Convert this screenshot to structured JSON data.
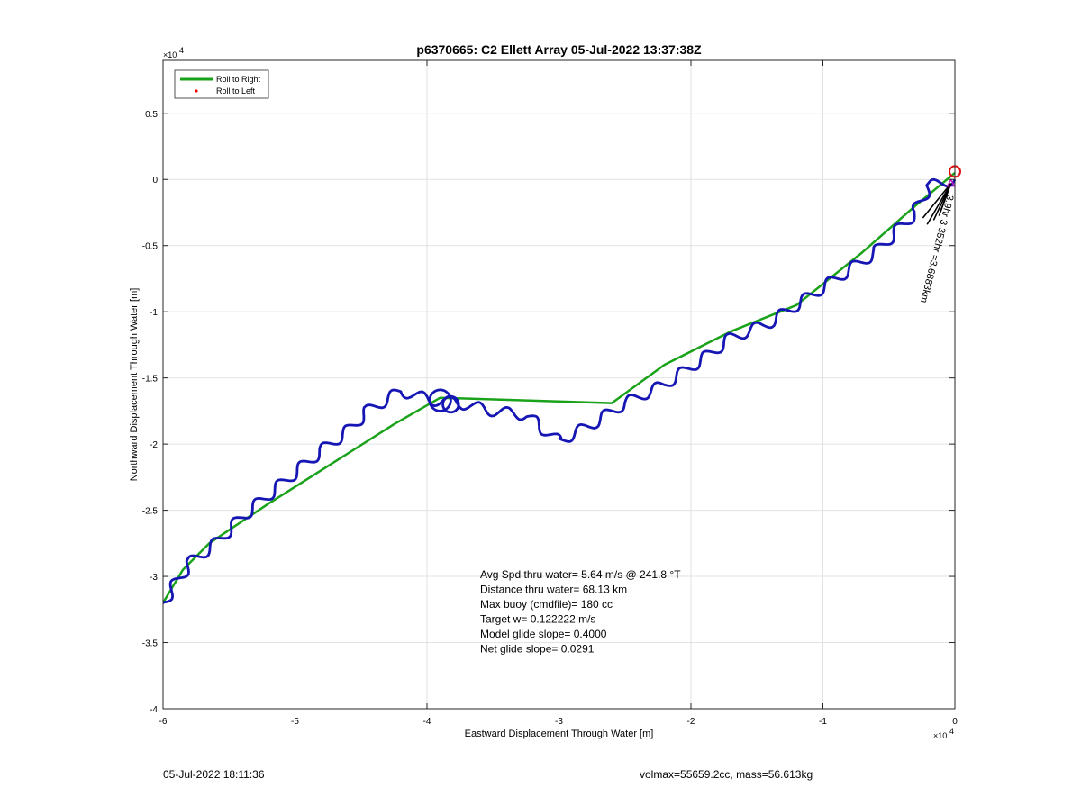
{
  "chart_data": {
    "type": "line",
    "title": "p6370665: C2 Ellett Array 05-Jul-2022 13:37:38Z",
    "xlabel": "Eastward Displacement Through Water [m]",
    "ylabel": "Northward Displacement Through Water [m]",
    "x_multiplier": "×10",
    "y_multiplier": "×10",
    "multiplier_exponent": "4",
    "xlim": [
      -60000,
      0
    ],
    "ylim": [
      -40000,
      9000
    ],
    "xticks": [
      -60000,
      -50000,
      -40000,
      -30000,
      -20000,
      -10000,
      0
    ],
    "xtick_labels": [
      "-6",
      "-5",
      "-4",
      "-3",
      "-2",
      "-1",
      "0"
    ],
    "yticks": [
      -40000,
      -35000,
      -30000,
      -25000,
      -20000,
      -15000,
      -10000,
      -5000,
      0,
      5000
    ],
    "ytick_labels": [
      "-4",
      "-3.5",
      "-3",
      "-2.5",
      "-2",
      "-1.5",
      "-1",
      "-0.5",
      "0",
      "0.5"
    ],
    "grid": true,
    "legend_position": "top-left",
    "legend": [
      {
        "name": "Roll to Right",
        "style": "line",
        "color": "#1aa21a"
      },
      {
        "name": "Roll to Left",
        "style": "dot",
        "color": "#ff0000"
      }
    ],
    "series": [
      {
        "name": "Roll to Right",
        "color": "#1aa21a",
        "x": [
          0,
          -3000,
          -7000,
          -12000,
          -17000,
          -22000,
          -26000,
          -39000,
          -42500,
          -52000,
          -56500,
          -58500,
          -60000
        ],
        "y": [
          500,
          -2000,
          -5500,
          -9500,
          -11500,
          -14000,
          -16900,
          -16500,
          -18500,
          -24500,
          -27500,
          -29500,
          -32000
        ]
      },
      {
        "name": "track",
        "color": "#1616b4",
        "base_x": [
          0,
          -2000,
          -3000,
          -6000,
          -9000,
          -12000,
          -14000,
          -17000,
          -19000,
          -22000,
          -25000,
          -27500,
          -30000,
          -32500,
          -35000,
          -38000,
          -39500,
          -42000,
          -44500,
          -46000,
          -48000,
          -51000,
          -54000,
          -56000,
          -58000,
          -59000,
          -60000
        ],
        "base_y": [
          0,
          -500,
          -2500,
          -5500,
          -7500,
          -9500,
          -10800,
          -12000,
          -13500,
          -15500,
          -16900,
          -18500,
          -19800,
          -17800,
          -17500,
          -16800,
          -16700,
          -16000,
          -17500,
          -19000,
          -20500,
          -23000,
          -25500,
          -27500,
          -29000,
          -30500,
          -32000
        ],
        "wiggle_amplitude_m": 400,
        "wiggle_period_m": 2200,
        "loops": [
          [
            -39000,
            -16700,
            800
          ],
          [
            -38200,
            -17000,
            600
          ]
        ]
      }
    ],
    "markers": [
      {
        "name": "start",
        "shape": "circle",
        "color": "#e01010",
        "x": 0,
        "y": 600
      },
      {
        "name": "target",
        "shape": "triangle",
        "color": "#c020c0",
        "x": -300,
        "y": -300
      }
    ],
    "annotation_segment": "3.9hr 3.352hr =3.6883km",
    "stats": [
      "Avg Spd thru water=  5.64 m/s @ 241.8 °T",
      "Distance thru water= 68.13 km",
      "Max buoy (cmdfile)= 180 cc",
      "Target w= 0.122222 m/s",
      "Model glide slope= 0.4000",
      "Net glide slope= 0.0291"
    ]
  },
  "footer": {
    "timestamp": "05-Jul-2022 18:11:36",
    "summary": "volmax=55659.2cc, mass=56.613kg"
  }
}
